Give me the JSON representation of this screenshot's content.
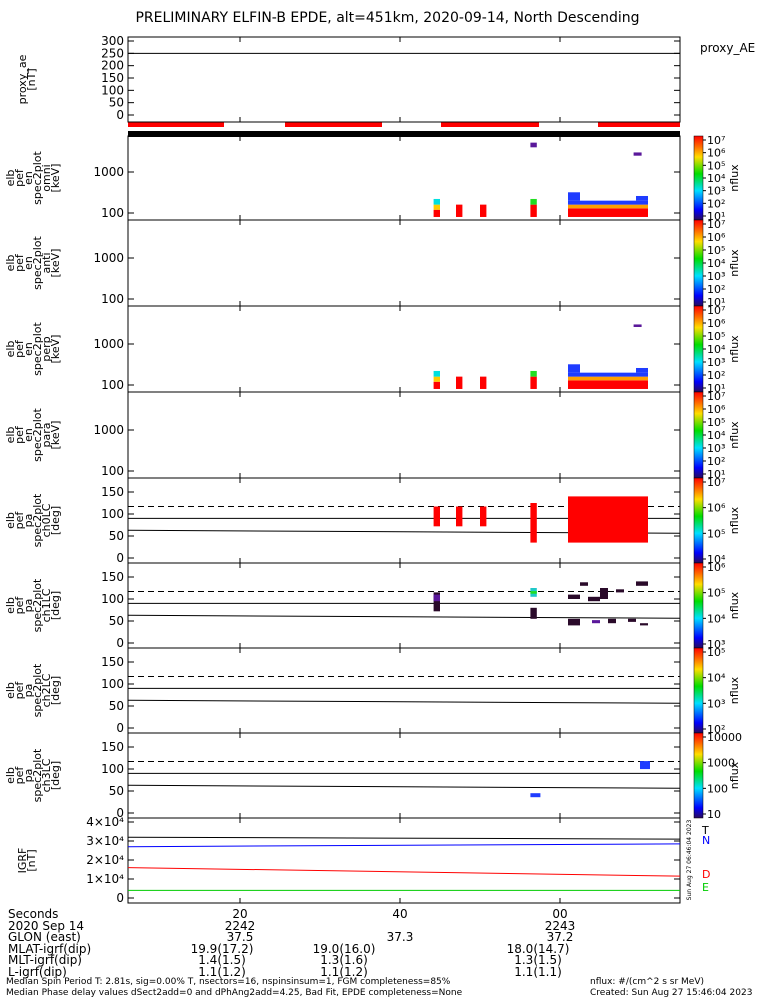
{
  "title": "PRELIMINARY ELFIN-B EPDE, alt=451km, 2020-09-14, North Descending",
  "panels": [
    {
      "name": "proxy_ae",
      "ylabel": [
        "proxy_ae",
        "[nT]"
      ],
      "ticks": [
        "300",
        "250",
        "200",
        "150",
        "100",
        "50",
        "0"
      ],
      "right_label": "proxy_AE"
    },
    {
      "name": "omni",
      "ylabel": [
        "elb",
        "pef",
        "en",
        "spec2plot",
        "omni",
        "[keV]"
      ],
      "ticks": [
        "1000",
        "100"
      ],
      "cbar_label": "nflux",
      "cbar_ticks": [
        "10⁷",
        "10⁶",
        "10⁵",
        "10⁴",
        "10³",
        "10²",
        "10¹"
      ]
    },
    {
      "name": "anti",
      "ylabel": [
        "elb",
        "pef",
        "en",
        "spec2plot",
        "anti",
        "[keV]"
      ],
      "ticks": [
        "1000",
        "100"
      ],
      "cbar_label": "nflux",
      "cbar_ticks": [
        "10⁷",
        "10⁶",
        "10⁵",
        "10⁴",
        "10³",
        "10²",
        "10¹"
      ]
    },
    {
      "name": "perp",
      "ylabel": [
        "elb",
        "pef",
        "en",
        "spec2plot",
        "perp",
        "[keV]"
      ],
      "ticks": [
        "1000",
        "100"
      ],
      "cbar_label": "nflux",
      "cbar_ticks": [
        "10⁷",
        "10⁶",
        "10⁵",
        "10⁴",
        "10³",
        "10²",
        "10¹"
      ]
    },
    {
      "name": "para",
      "ylabel": [
        "elb",
        "pef",
        "en",
        "spec2plot",
        "para",
        "[keV]"
      ],
      "ticks": [
        "1000",
        "100"
      ],
      "cbar_label": "nflux",
      "cbar_ticks": [
        "10⁷",
        "10⁶",
        "10⁵",
        "10⁴",
        "10³",
        "10²",
        "10¹"
      ]
    },
    {
      "name": "ch0LC",
      "ylabel": [
        "elb",
        "pef",
        "pa",
        "spec2plot",
        "ch0LC",
        "[deg]"
      ],
      "ticks": [
        "150",
        "100",
        "50",
        "0"
      ],
      "cbar_label": "nflux",
      "cbar_ticks": [
        "10⁷",
        "10⁶",
        "10⁵",
        "10⁴"
      ]
    },
    {
      "name": "ch1LC",
      "ylabel": [
        "elb",
        "pef",
        "pa",
        "spec2plot",
        "ch1LC",
        "[deg]"
      ],
      "ticks": [
        "150",
        "100",
        "50",
        "0"
      ],
      "cbar_label": "nflux",
      "cbar_ticks": [
        "10⁶",
        "10⁵",
        "10⁴",
        "10³"
      ]
    },
    {
      "name": "ch2LC",
      "ylabel": [
        "elb",
        "pef",
        "pa",
        "spec2plot",
        "ch2LC",
        "[deg]"
      ],
      "ticks": [
        "150",
        "100",
        "50",
        "0"
      ],
      "cbar_label": "nflux",
      "cbar_ticks": [
        "10⁵",
        "10⁴",
        "10³",
        "10²"
      ]
    },
    {
      "name": "ch3LC",
      "ylabel": [
        "elb",
        "pef",
        "pa",
        "spec2plot",
        "ch3LC",
        "[deg]"
      ],
      "ticks": [
        "150",
        "100",
        "50",
        "0"
      ],
      "cbar_label": "nflux",
      "cbar_ticks": [
        "10000",
        "1000",
        "100",
        "10"
      ]
    },
    {
      "name": "igrf",
      "ylabel": [
        "IGRF",
        "[nT]"
      ],
      "ticks": [
        "4×10⁴",
        "3×10⁴",
        "2×10⁴",
        "1×10⁴",
        "0"
      ],
      "legend": [
        "N",
        "D",
        "E"
      ],
      "sidebar_text": "Sun Aug 27 06:46:04 2023"
    }
  ],
  "chart_data": {
    "type": "heatmap",
    "x_ticks": [
      "20",
      "40",
      "00"
    ],
    "proxy_ae": {
      "ylim": [
        0,
        300
      ],
      "value": 250
    },
    "energy_spectra": {
      "ylog": true,
      "ylim_keV": [
        60,
        6000
      ],
      "omni_blocks": [
        {
          "x": [
            44.2,
            45.0
          ],
          "e": [
            80,
            120
          ],
          "c": "red"
        },
        {
          "x": [
            44.2,
            45.0
          ],
          "e": [
            120,
            160
          ],
          "c": "yellow"
        },
        {
          "x": [
            44.2,
            45.0
          ],
          "e": [
            160,
            220
          ],
          "c": "cyan"
        },
        {
          "x": [
            47.0,
            47.8
          ],
          "e": [
            80,
            160
          ],
          "c": "red"
        },
        {
          "x": [
            50.0,
            50.8
          ],
          "e": [
            80,
            160
          ],
          "c": "red"
        },
        {
          "x": [
            56.3,
            57.1
          ],
          "e": [
            80,
            160
          ],
          "c": "red"
        },
        {
          "x": [
            56.3,
            57.1
          ],
          "e": [
            160,
            220
          ],
          "c": "green"
        },
        {
          "x": [
            56.3,
            57.1
          ],
          "e": [
            4000,
            5200
          ],
          "c": "purple"
        },
        {
          "x": [
            61,
            71
          ],
          "e": [
            80,
            130
          ],
          "c": "red"
        },
        {
          "x": [
            61,
            71
          ],
          "e": [
            130,
            160
          ],
          "c": "orange"
        },
        {
          "x": [
            61,
            71
          ],
          "e": [
            160,
            200
          ],
          "c": "blue"
        },
        {
          "x": [
            61,
            62.5
          ],
          "e": [
            200,
            320
          ],
          "c": "blue"
        },
        {
          "x": [
            69.5,
            71
          ],
          "e": [
            200,
            260
          ],
          "c": "blue"
        },
        {
          "x": [
            69.2,
            70.2
          ],
          "e": [
            2500,
            3000
          ],
          "c": "purple"
        }
      ]
    },
    "pitch_angle": {
      "ylim": [
        0,
        180
      ],
      "dashed": 117,
      "solid": [
        90,
        63
      ]
    },
    "igrf": {
      "ylim": [
        0,
        40000
      ],
      "N": [
        27000,
        28500
      ],
      "total": [
        32000,
        31000
      ],
      "D": [
        16000,
        11500
      ],
      "E": [
        4000,
        4000
      ]
    },
    "series_colors": {
      "N": "#0000ff",
      "D": "#ff0000",
      "E": "#00cc00"
    }
  },
  "table": {
    "labels": [
      "Seconds",
      "2020 Sep 14",
      "GLON (east)",
      "MLAT-igrf(dip)",
      "MLT-igrf(dip)",
      "L-igrf(dip)"
    ],
    "cols": [
      {
        "vals": [
          "20",
          "2242",
          "37.5",
          "19.9(17.2)",
          "1.4(1.5)",
          "1.1(1.2)"
        ]
      },
      {
        "vals": [
          "40",
          "",
          "37.3",
          "19.0(16.0)",
          "1.3(1.6)",
          "1.1(1.2)"
        ]
      },
      {
        "vals": [
          "00",
          "2243",
          "37.2",
          "18.0(14.7)",
          "1.3(1.5)",
          "1.1(1.1)"
        ]
      }
    ]
  },
  "footer": {
    "line1": "Median Spin Period T: 2.81s, sig=0.00% T, nsectors=16, nspinsinsum=1, FGM completeness=85%",
    "line2": "Median Phase delay values dSect2add=0 and dPhAng2add=4.25, Bad Fit, EPDE completeness=None",
    "right1": "nflux: #/(cm^2 s sr MeV)",
    "right2": "Created: Sun Aug 27 15:46:04 2023"
  }
}
